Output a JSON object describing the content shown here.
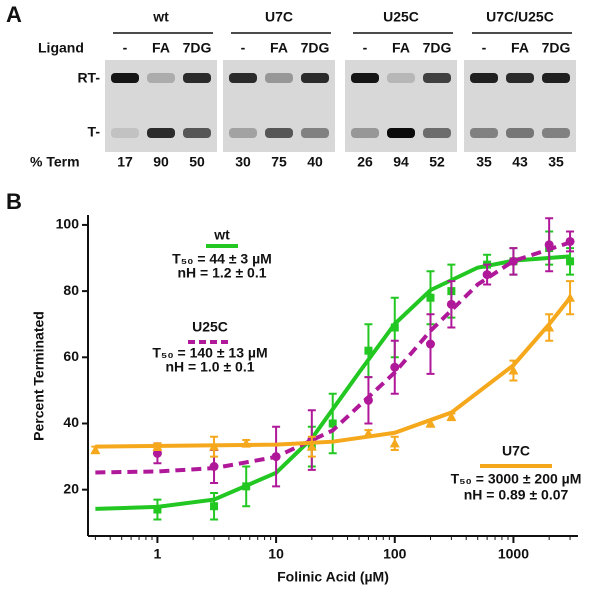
{
  "panel_a": {
    "label": "A",
    "ligand_label": "Ligand",
    "rt_label": "RT-",
    "t_label": "T-",
    "term_label": "% Term",
    "groups": [
      {
        "name": "wt",
        "lanes": [
          "-",
          "FA",
          "7DG"
        ],
        "term": [
          17,
          90,
          50
        ]
      },
      {
        "name": "U7C",
        "lanes": [
          "-",
          "FA",
          "7DG"
        ],
        "term": [
          30,
          75,
          40
        ]
      },
      {
        "name": "U25C",
        "lanes": [
          "-",
          "FA",
          "7DG"
        ],
        "term": [
          26,
          94,
          52
        ]
      },
      {
        "name": "U7C/U25C",
        "lanes": [
          "-",
          "FA",
          "7DG"
        ],
        "term": [
          35,
          43,
          35
        ]
      }
    ]
  },
  "chart_data": {
    "type": "scatter",
    "panel_label": "B",
    "x_label": "Folinic Acid (µM)",
    "y_label": "Percent Terminated",
    "xlog": true,
    "xlim": [
      0.26,
      3500
    ],
    "xticks": [
      1,
      10,
      100,
      1000
    ],
    "ylim": [
      6,
      103
    ],
    "yticks": [
      20,
      40,
      60,
      80,
      100
    ],
    "series": [
      {
        "name": "wt",
        "color": "#22c722",
        "marker": "square",
        "dashed": false,
        "t50": "T₅₀ = 44 ± 3 µM",
        "nh": "nH = 1.2 ± 0.1",
        "x": [
          1,
          3,
          5.6,
          20,
          30,
          60,
          100,
          200,
          300,
          600,
          1000,
          2000,
          3000
        ],
        "values": [
          14,
          15,
          21,
          33,
          40,
          62,
          69,
          78,
          80,
          88,
          89,
          93,
          89
        ],
        "errors": [
          3,
          4,
          6,
          6,
          9,
          8,
          9,
          8,
          8,
          3,
          4,
          5,
          4
        ],
        "fit_x": [
          0.3,
          1,
          3,
          10,
          20,
          50,
          100,
          200,
          500,
          1000,
          3000
        ],
        "fit_values": [
          14.2,
          14.8,
          17,
          25.1,
          35.5,
          55.4,
          70.1,
          80.3,
          87.1,
          89.2,
          90.5
        ]
      },
      {
        "name": "U25C",
        "color": "#b0189a",
        "marker": "circle",
        "dashed": true,
        "t50": "T₅₀ = 140 ± 13 µM",
        "nh": "nH = 1.0 ± 0.1",
        "x": [
          1,
          3,
          10,
          20,
          60,
          100,
          200,
          300,
          600,
          1000,
          2000,
          3000
        ],
        "values": [
          31,
          27,
          30,
          35,
          47,
          57,
          64,
          76,
          85,
          89,
          94,
          95
        ],
        "errors": [
          3,
          5,
          9,
          9,
          7,
          8,
          9,
          7,
          3,
          4,
          8,
          3
        ],
        "fit_x": [
          0.3,
          1,
          3,
          10,
          30,
          100,
          200,
          500,
          1000,
          3000
        ],
        "fit_values": [
          25.2,
          25.5,
          26.5,
          29.9,
          37.9,
          55.4,
          68,
          82,
          89.1,
          94.7
        ]
      },
      {
        "name": "U7C",
        "color": "#f5a81c",
        "marker": "triangle",
        "dashed": false,
        "t50": "T₅₀ = 3000 ± 200 µM",
        "nh": "nH = 0.89 ± 0.07",
        "x": [
          0.3,
          1,
          3,
          5.6,
          20,
          60,
          100,
          200,
          300,
          1000,
          2000,
          3000
        ],
        "values": [
          32,
          33,
          33,
          34,
          33,
          37,
          34,
          40,
          42,
          56,
          69,
          78
        ],
        "errors": [
          1,
          1,
          3,
          1,
          3,
          1,
          2,
          1,
          1,
          3,
          4,
          5
        ],
        "fit_x": [
          0.3,
          10,
          30,
          100,
          300,
          1000,
          2000,
          3000
        ],
        "fit_values": [
          33,
          33.6,
          34.5,
          37.2,
          43.3,
          57.6,
          70,
          78
        ]
      }
    ]
  }
}
